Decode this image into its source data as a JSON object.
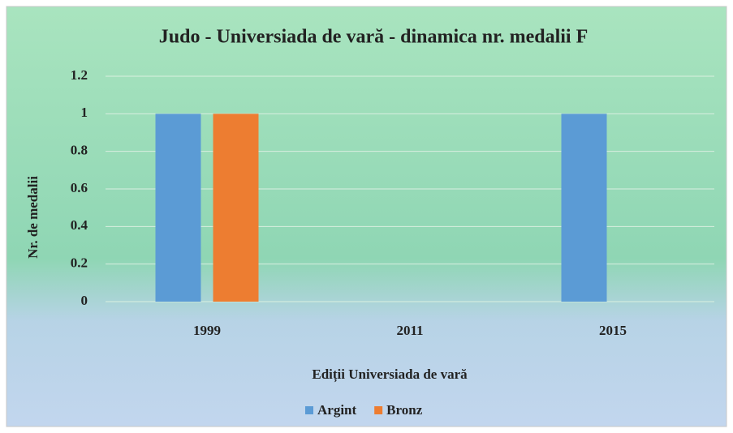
{
  "chart_data": {
    "type": "bar",
    "title": "Judo - Universiada de vară - dinamica nr. medalii F",
    "x_label": "Ediții Universiada de vară",
    "y_label": "Nr. de medalii",
    "categories": [
      "1999",
      "2011",
      "2015"
    ],
    "series": [
      {
        "name": "Argint",
        "color": "#5b9bd5",
        "values": [
          1,
          0,
          1
        ]
      },
      {
        "name": "Bronz",
        "color": "#ed7d31",
        "values": [
          1,
          0,
          0
        ]
      }
    ],
    "ylim": [
      0,
      1.2
    ],
    "yticks": [
      0,
      0.2,
      0.4,
      0.6,
      0.8,
      1,
      1.2
    ],
    "grid": true,
    "legend": "bottom"
  }
}
